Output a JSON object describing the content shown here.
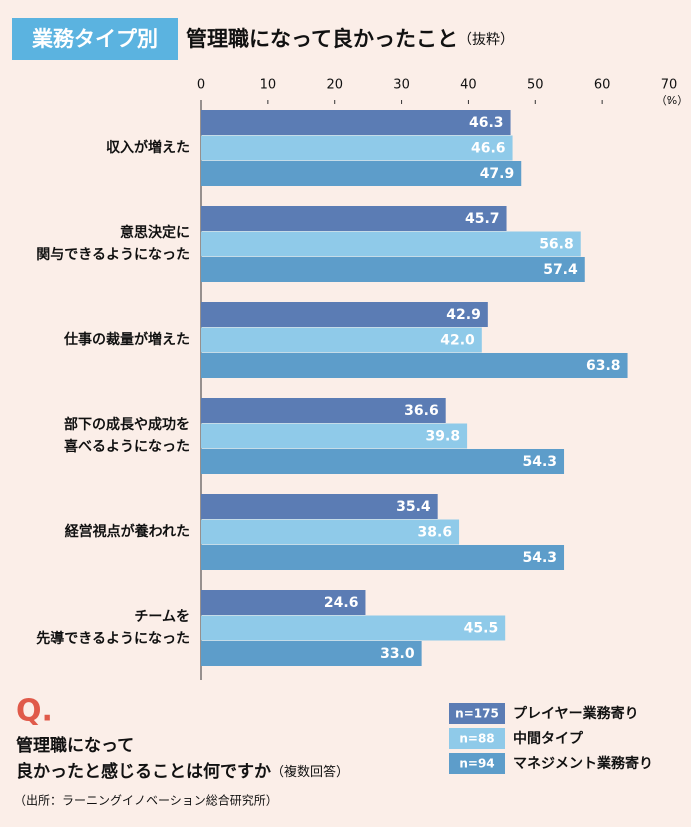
{
  "tag": "業務タイプ別",
  "chart_data": {
    "type": "hbar",
    "title": "管理職になって良かったこと",
    "title_note": "（抜粋）",
    "x_unit": "（%）",
    "categories": [
      [
        "収入が増えた"
      ],
      [
        "意思決定に",
        "関与できるようになった"
      ],
      [
        "仕事の裁量が増えた"
      ],
      [
        "部下の成長や成功を",
        "喜べるようになった"
      ],
      [
        "経営視点が養われた"
      ],
      [
        "チームを",
        "先導できるようになった"
      ]
    ],
    "series": [
      {
        "name": "プレイヤー業務寄り",
        "n": "n=175",
        "color": "#5b7cb4",
        "values": [
          46.3,
          45.7,
          42.9,
          36.6,
          35.4,
          24.6
        ],
        "value_labels": [
          "46.3",
          "45.7",
          "42.9",
          "36.6",
          "35.4",
          "24.6"
        ]
      },
      {
        "name": "中間タイプ",
        "n": "n=88",
        "color": "#8fcae9",
        "values": [
          46.6,
          56.8,
          42.0,
          39.8,
          38.6,
          45.5
        ],
        "value_labels": [
          "46.6",
          "56.8",
          "42.0",
          "39.8",
          "38.6",
          "45.5"
        ]
      },
      {
        "name": "マネジメント業務寄り",
        "n": "n=94",
        "color": "#5d9dca",
        "values": [
          47.9,
          57.4,
          63.8,
          54.3,
          54.3,
          33.0
        ],
        "value_labels": [
          "47.9",
          "57.4",
          "63.8",
          "54.3",
          "54.3",
          "33.0"
        ]
      }
    ],
    "xlim": [
      0,
      70
    ],
    "xticks": [
      0,
      10,
      20,
      30,
      40,
      50,
      60,
      70
    ],
    "grid": false
  },
  "question": {
    "mark": "Q.",
    "lines": [
      "管理職になって",
      "良かったと感じることは何ですか"
    ],
    "note": "（複数回答）"
  },
  "source": "（出所：ラーニングイノベーション総合研究所）"
}
